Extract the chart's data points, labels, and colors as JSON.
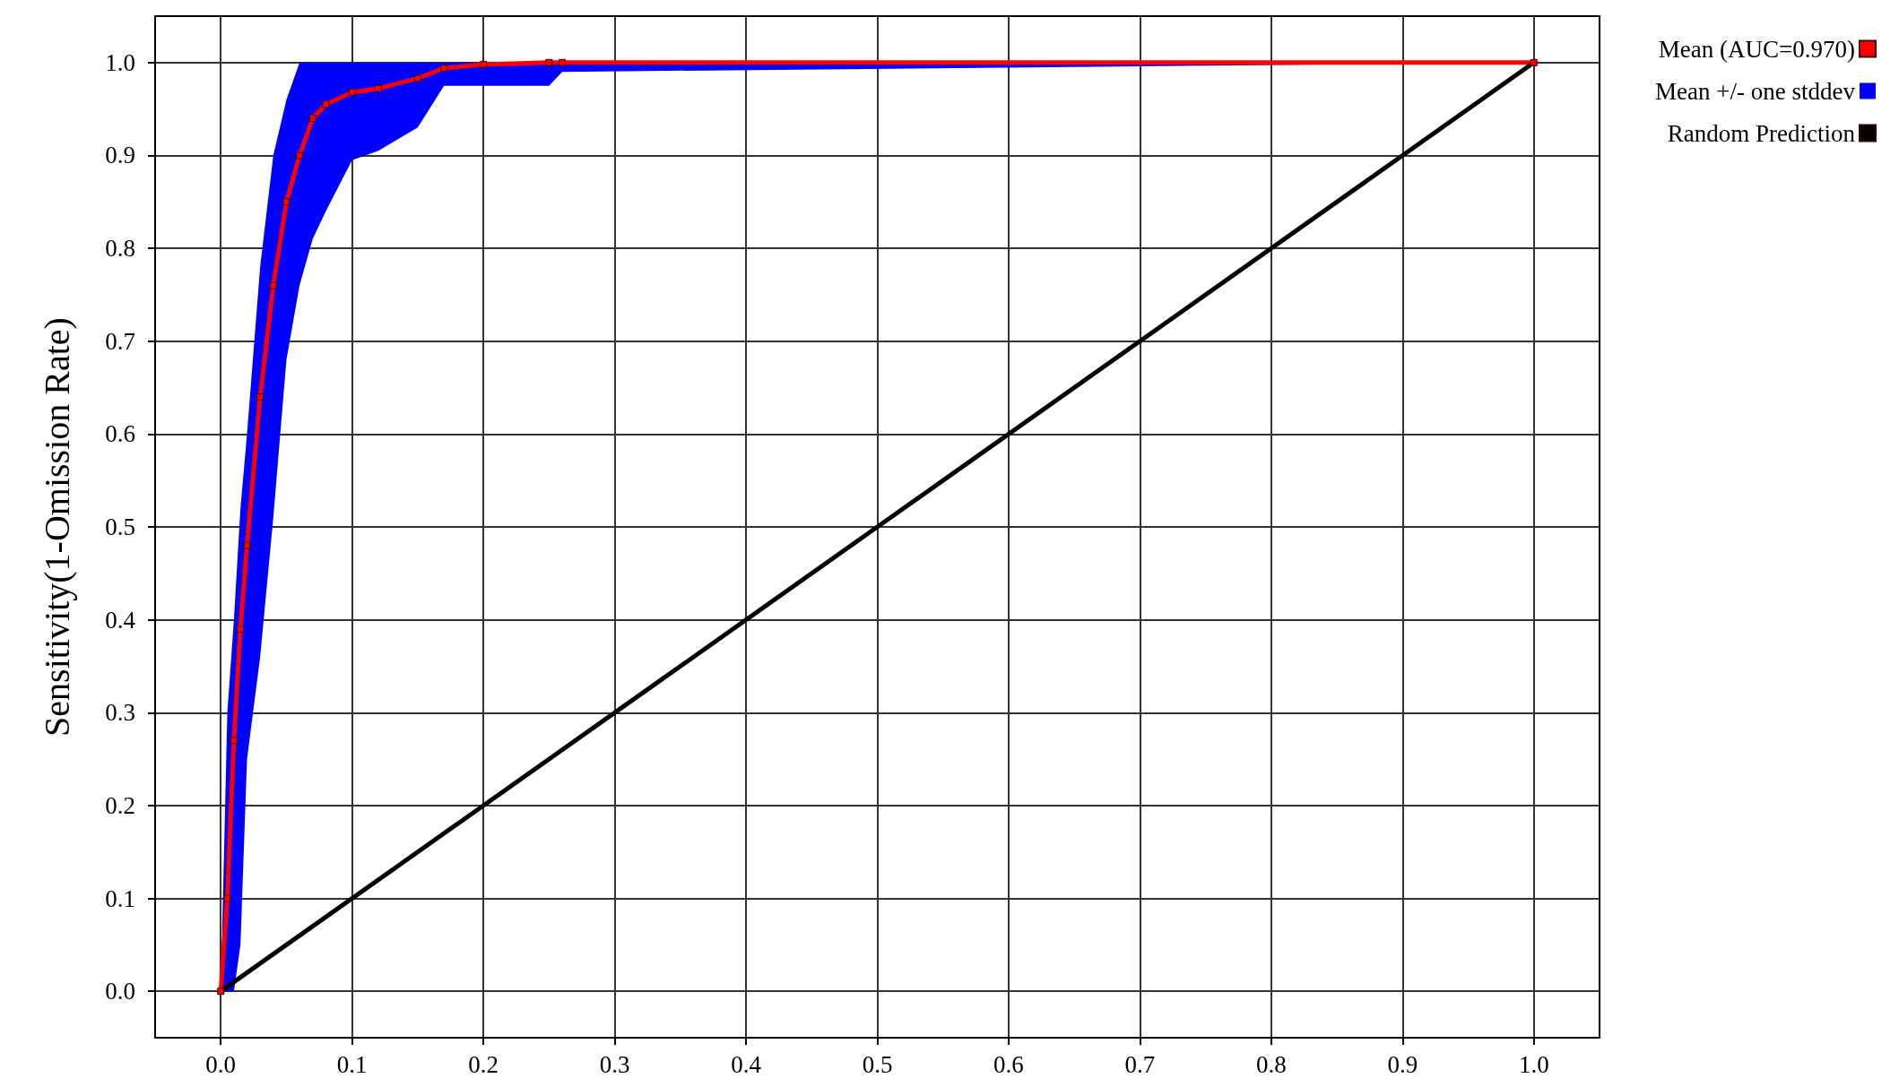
{
  "chart_data": {
    "type": "line",
    "ylabel": "Sensitivity(1-Omission Rate)",
    "xlim": [
      -0.05,
      1.05
    ],
    "ylim": [
      -0.05,
      1.05
    ],
    "xticks": [
      {
        "value": 0,
        "label": "0.0"
      },
      {
        "value": 0.1,
        "label": "0.1"
      },
      {
        "value": 0.2,
        "label": "0.2"
      },
      {
        "value": 0.3,
        "label": "0.3"
      },
      {
        "value": 0.4,
        "label": "0.4"
      },
      {
        "value": 0.5,
        "label": "0.5"
      },
      {
        "value": 0.6,
        "label": "0.6"
      },
      {
        "value": 0.7,
        "label": "0.7"
      },
      {
        "value": 0.8,
        "label": "0.8"
      },
      {
        "value": 0.9,
        "label": "0.9"
      },
      {
        "value": 1,
        "label": "1.0"
      }
    ],
    "yticks": [
      {
        "value": 0,
        "label": "0.0"
      },
      {
        "value": 0.1,
        "label": "0.1"
      },
      {
        "value": 0.2,
        "label": "0.2"
      },
      {
        "value": 0.3,
        "label": "0.3"
      },
      {
        "value": 0.4,
        "label": "0.4"
      },
      {
        "value": 0.5,
        "label": "0.5"
      },
      {
        "value": 0.6,
        "label": "0.6"
      },
      {
        "value": 0.7,
        "label": "0.7"
      },
      {
        "value": 0.8,
        "label": "0.8"
      },
      {
        "value": 0.9,
        "label": "0.9"
      },
      {
        "value": 1,
        "label": "1.0"
      }
    ],
    "grid": true,
    "legend": "top right",
    "series": [
      {
        "name": "Mean (AUC=0.970)",
        "color": "#ff0000",
        "marker": "square",
        "x": [
          0,
          0.005,
          0.01,
          0.015,
          0.02,
          0.03,
          0.04,
          0.05,
          0.06,
          0.07,
          0.08,
          0.1,
          0.12,
          0.15,
          0.17,
          0.2,
          0.25,
          0.26,
          1
        ],
        "values": [
          0,
          0.1,
          0.27,
          0.39,
          0.48,
          0.64,
          0.76,
          0.85,
          0.9,
          0.94,
          0.955,
          0.968,
          0.972,
          0.983,
          0.994,
          0.998,
          1,
          1,
          1
        ],
        "lower": [
          0,
          0,
          0,
          0.05,
          0.25,
          0.36,
          0.51,
          0.68,
          0.76,
          0.81,
          0.84,
          0.895,
          0.905,
          0.93,
          0.975,
          0.975,
          0.975,
          0.99,
          1
        ],
        "upper": [
          0,
          0.3,
          0.4,
          0.52,
          0.6,
          0.78,
          0.9,
          0.96,
          1,
          1,
          1,
          1,
          1,
          1,
          1,
          1,
          1,
          1,
          1
        ]
      },
      {
        "name": "Mean +/- one stddev",
        "type": "area",
        "color": "#0000ff"
      },
      {
        "name": "Random Prediction",
        "color": "#000000",
        "marker": "none",
        "x": [
          0,
          1
        ],
        "values": [
          0,
          1
        ]
      }
    ]
  }
}
